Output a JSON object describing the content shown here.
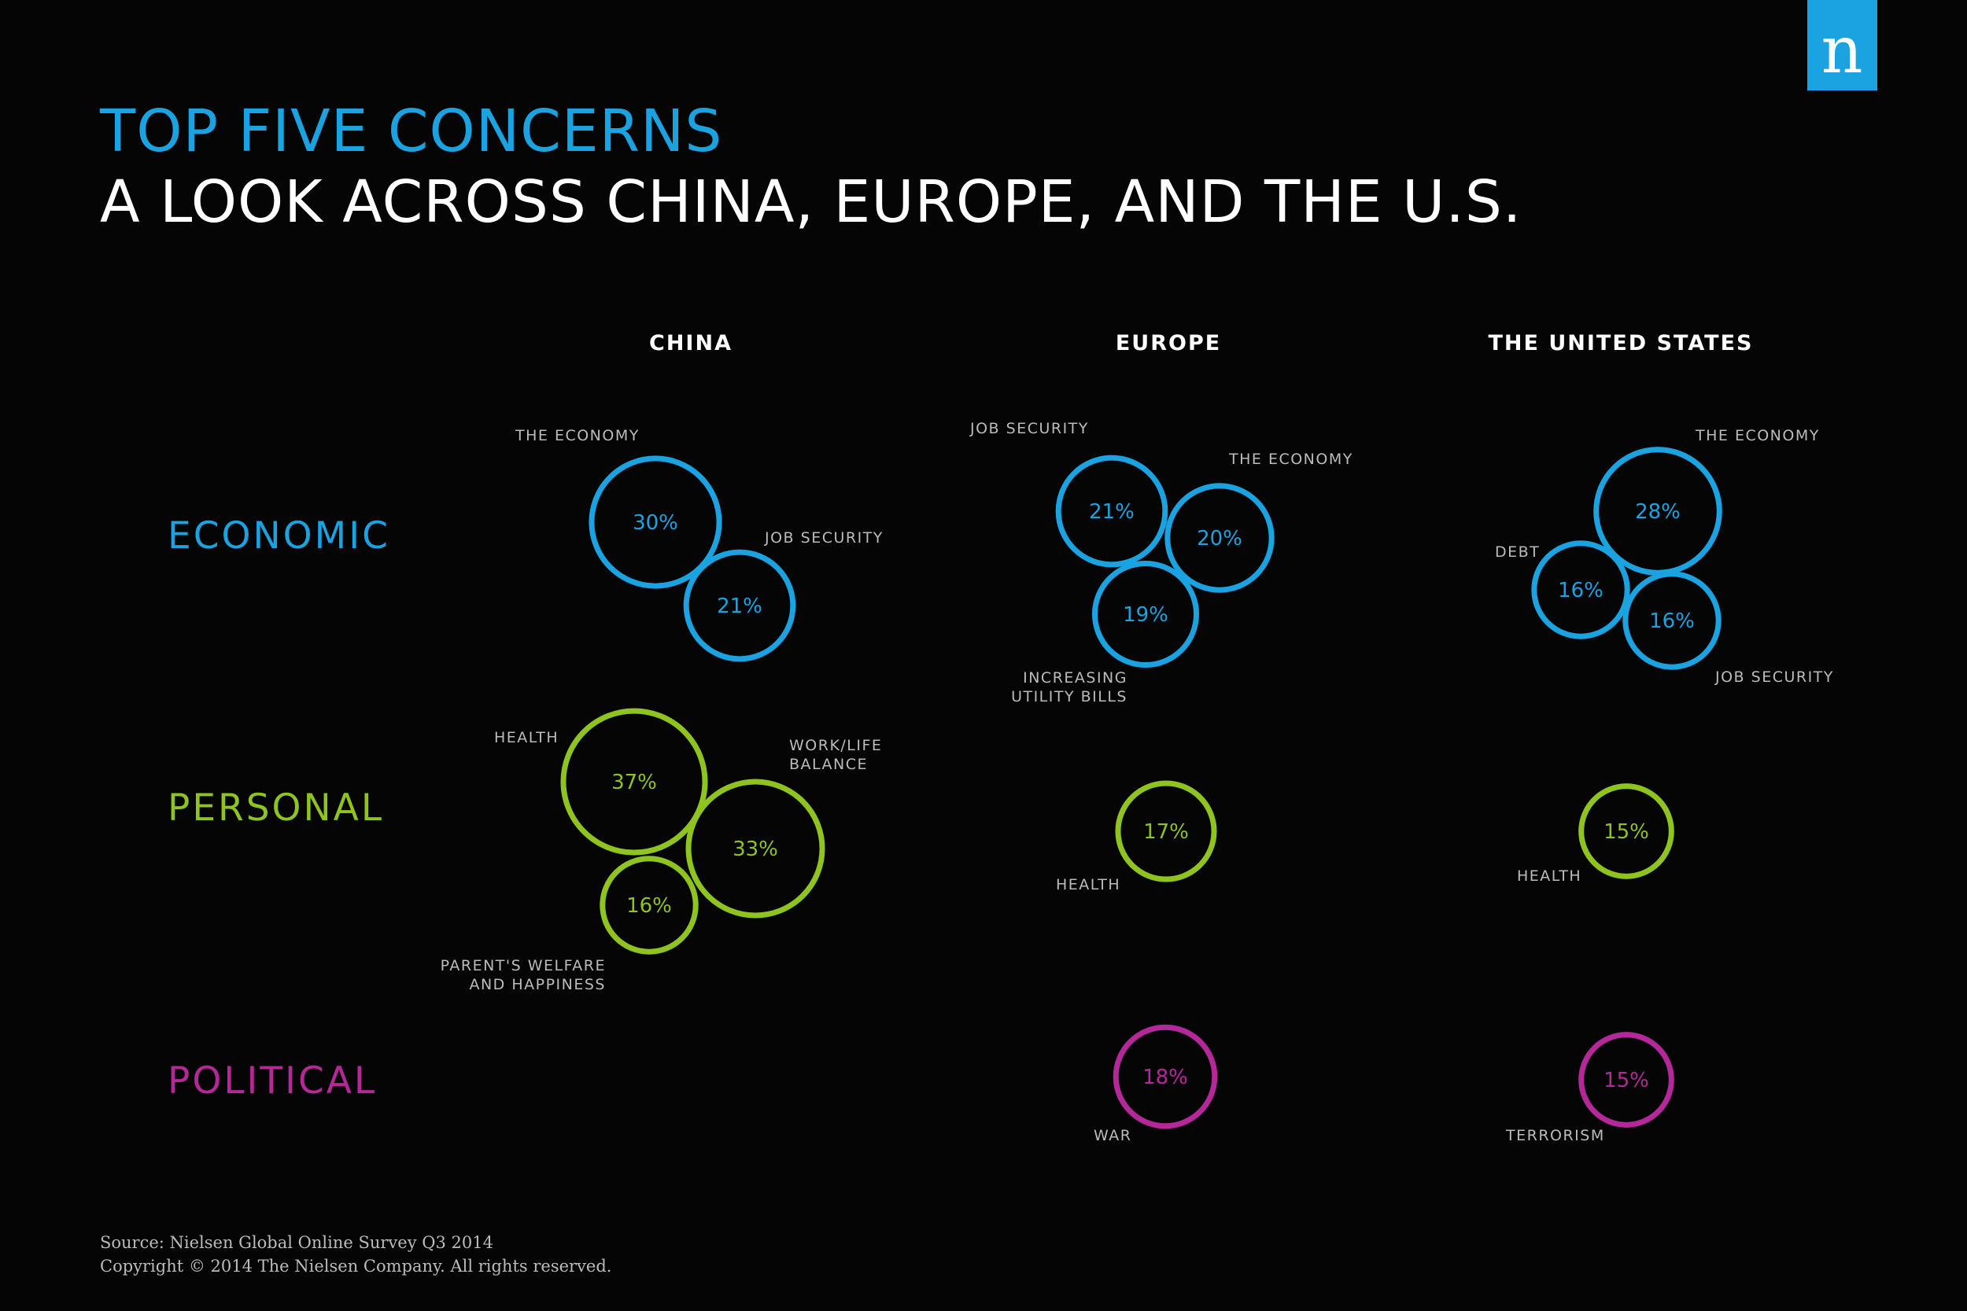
{
  "title": "TOP FIVE CONCERNS",
  "subtitle": "A LOOK ACROSS CHINA, EUROPE, AND THE U.S.",
  "logo_text": "n",
  "colors": {
    "background": "#050505",
    "economic": "#1aa3e0",
    "personal": "#8fc31f",
    "political": "#b5289a",
    "logo_bg": "#1aa3e0",
    "label": "#bbbbbb",
    "text": "#ffffff"
  },
  "chart_data": {
    "type": "bubble",
    "regions": [
      "CHINA",
      "EUROPE",
      "THE UNITED STATES"
    ],
    "categories": [
      "ECONOMIC",
      "PERSONAL",
      "POLITICAL"
    ],
    "concerns": [
      {
        "region": "CHINA",
        "category": "ECONOMIC",
        "label": "THE ECONOMY",
        "value": 30,
        "display": "30%"
      },
      {
        "region": "CHINA",
        "category": "ECONOMIC",
        "label": "JOB SECURITY",
        "value": 21,
        "display": "21%"
      },
      {
        "region": "CHINA",
        "category": "PERSONAL",
        "label": "HEALTH",
        "value": 37,
        "display": "37%"
      },
      {
        "region": "CHINA",
        "category": "PERSONAL",
        "label": "WORK/LIFE BALANCE",
        "value": 33,
        "display": "33%"
      },
      {
        "region": "CHINA",
        "category": "PERSONAL",
        "label": "PARENT'S WELFARE AND HAPPINESS",
        "value": 16,
        "display": "16%"
      },
      {
        "region": "EUROPE",
        "category": "ECONOMIC",
        "label": "JOB SECURITY",
        "value": 21,
        "display": "21%"
      },
      {
        "region": "EUROPE",
        "category": "ECONOMIC",
        "label": "THE ECONOMY",
        "value": 20,
        "display": "20%"
      },
      {
        "region": "EUROPE",
        "category": "ECONOMIC",
        "label": "INCREASING UTILITY BILLS",
        "value": 19,
        "display": "19%"
      },
      {
        "region": "EUROPE",
        "category": "PERSONAL",
        "label": "HEALTH",
        "value": 17,
        "display": "17%"
      },
      {
        "region": "EUROPE",
        "category": "POLITICAL",
        "label": "WAR",
        "value": 18,
        "display": "18%"
      },
      {
        "region": "THE UNITED STATES",
        "category": "ECONOMIC",
        "label": "THE ECONOMY",
        "value": 28,
        "display": "28%"
      },
      {
        "region": "THE UNITED STATES",
        "category": "ECONOMIC",
        "label": "DEBT",
        "value": 16,
        "display": "16%"
      },
      {
        "region": "THE UNITED STATES",
        "category": "ECONOMIC",
        "label": "JOB SECURITY",
        "value": 16,
        "display": "16%"
      },
      {
        "region": "THE UNITED STATES",
        "category": "PERSONAL",
        "label": "HEALTH",
        "value": 15,
        "display": "15%"
      },
      {
        "region": "THE UNITED STATES",
        "category": "POLITICAL",
        "label": "TERRORISM",
        "value": 15,
        "display": "15%"
      }
    ]
  },
  "footer": {
    "source": "Source: Nielsen Global Online Survey Q3 2014",
    "copyright": "Copyright © 2014 The Nielsen Company. All rights reserved."
  }
}
